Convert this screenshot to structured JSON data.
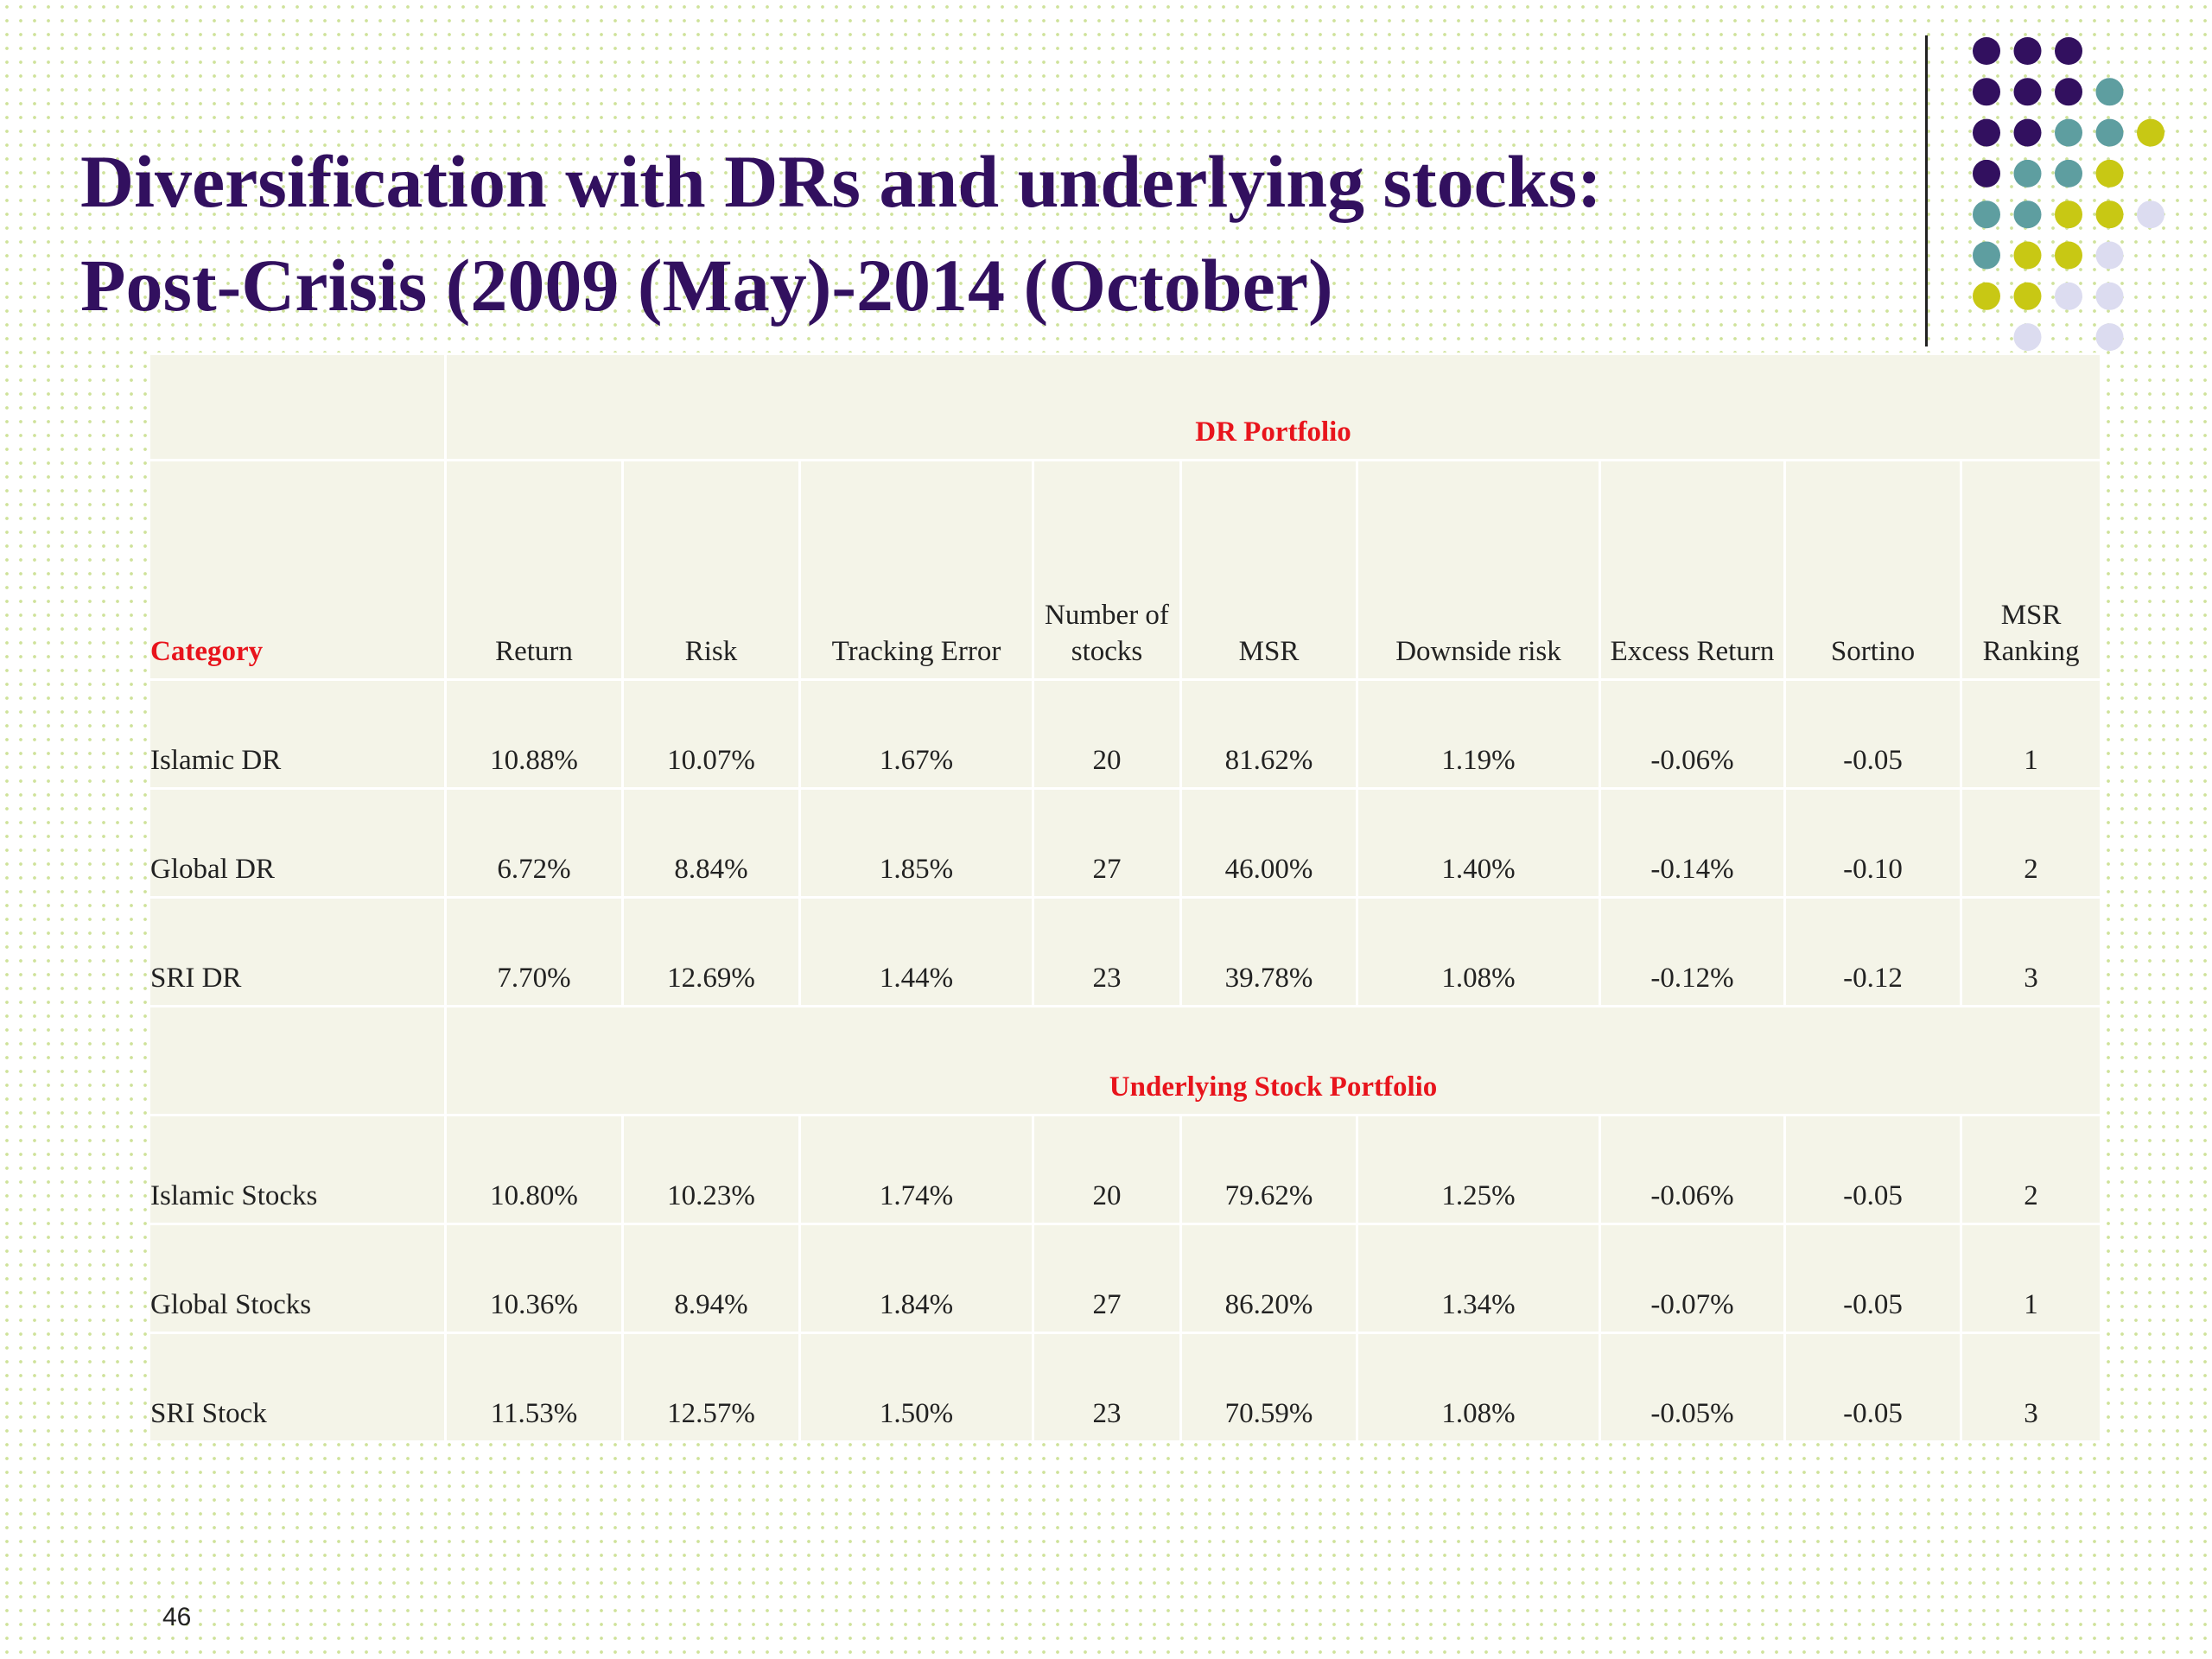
{
  "title": [
    "Diversification with DRs and underlying stocks:",
    "Post-Crisis (2009 (May)-2014 (October)"
  ],
  "table": {
    "columns": [
      "Category",
      "Return",
      "Risk",
      "Tracking Error",
      "Number of stocks",
      "MSR",
      "Downside risk",
      "Excess Return",
      "Sortino",
      "MSR Ranking"
    ],
    "sections": [
      {
        "name": "DR Portfolio",
        "rows": [
          [
            "Islamic DR",
            "10.88%",
            "10.07%",
            "1.67%",
            "20",
            "81.62%",
            "1.19%",
            "-0.06%",
            "-0.05",
            "1"
          ],
          [
            "Global DR",
            "6.72%",
            "8.84%",
            "1.85%",
            "27",
            "46.00%",
            "1.40%",
            "-0.14%",
            "-0.10",
            "2"
          ],
          [
            "SRI DR",
            "7.70%",
            "12.69%",
            "1.44%",
            "23",
            "39.78%",
            "1.08%",
            "-0.12%",
            "-0.12",
            "3"
          ]
        ]
      },
      {
        "name": "Underlying Stock Portfolio",
        "rows": [
          [
            "Islamic Stocks",
            "10.80%",
            "10.23%",
            "1.74%",
            "20",
            "79.62%",
            "1.25%",
            "-0.06%",
            "-0.05",
            "2"
          ],
          [
            "Global Stocks",
            "10.36%",
            "8.94%",
            "1.84%",
            "27",
            "86.20%",
            "1.34%",
            "-0.07%",
            "-0.05",
            "1"
          ],
          [
            "SRI Stock",
            "11.53%",
            "12.57%",
            "1.50%",
            "23",
            "70.59%",
            "1.08%",
            "-0.05%",
            "-0.05",
            "3"
          ]
        ]
      }
    ]
  },
  "page_number": "46"
}
